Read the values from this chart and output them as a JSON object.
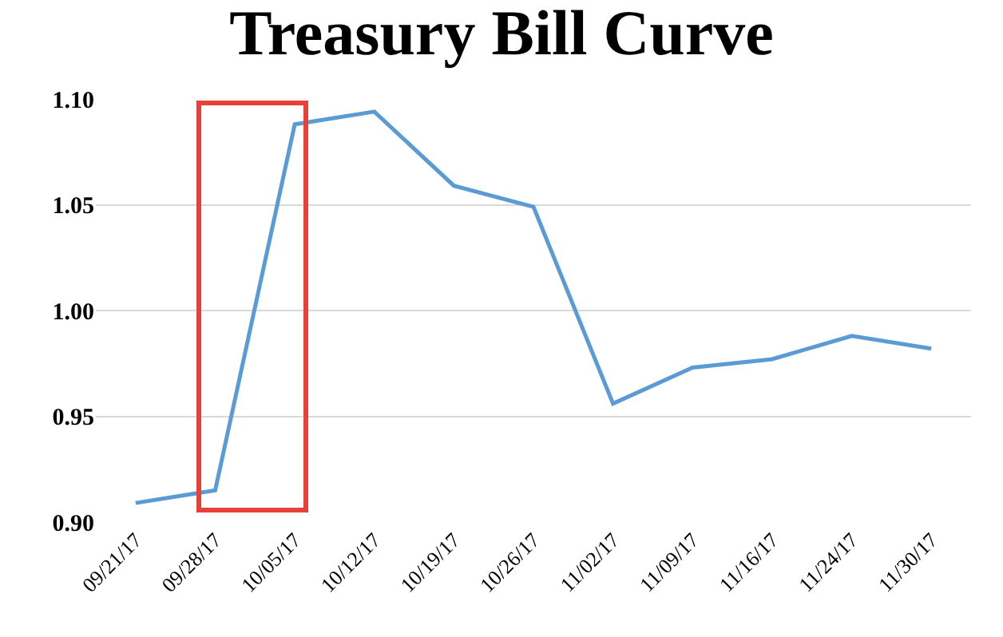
{
  "chart_data": {
    "type": "line",
    "title": "Treasury Bill Curve",
    "categories": [
      "09/21/17",
      "09/28/17",
      "10/05/17",
      "10/12/17",
      "10/19/17",
      "10/26/17",
      "11/02/17",
      "11/09/17",
      "11/16/17",
      "11/24/17",
      "11/30/17"
    ],
    "series": [
      {
        "color": "#5b9bd5",
        "values": [
          0.909,
          0.915,
          1.088,
          1.094,
          1.059,
          1.049,
          0.956,
          0.973,
          0.977,
          0.988,
          0.982
        ]
      }
    ],
    "ylim": [
      0.9,
      1.1
    ],
    "yticks": [
      {
        "value": 0.9,
        "label": "0.90"
      },
      {
        "value": 0.95,
        "label": "0.95"
      },
      {
        "value": 1.0,
        "label": "1.00"
      },
      {
        "value": 1.05,
        "label": "1.05"
      },
      {
        "value": 1.1,
        "label": "1.10"
      }
    ],
    "grid": "y",
    "marker": "none",
    "line_style": "solid"
  }
}
